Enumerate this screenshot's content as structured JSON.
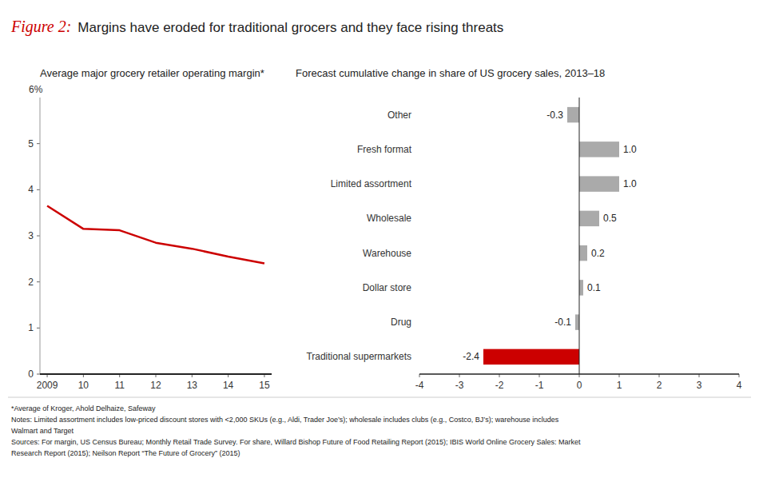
{
  "title": "Figure 2:",
  "subtitle": "Margins have eroded for traditional grocers and they face rising threats",
  "notes": [
    "*Average of Kroger, Ahold Delhaize, Safeway",
    "Notes: Limited assortment includes low-priced discount stores with <2,000 SKUs (e.g., Aldi, Trader Joe’s); wholesale includes clubs (e.g., Costco, BJ’s); warehouse includes",
    "Walmart and Target",
    "Sources: For margin, US Census Bureau; Monthly Retail Trade Survey. For share, Willard Bishop Future of Food Retailing Report (2015); IBIS World Online Grocery Sales: Market",
    "Research Report (2015); Neilson Report “The Future of Grocery” (2015)"
  ],
  "chart_data": [
    {
      "type": "line",
      "title": "Average major grocery retailer operating margin*",
      "ylabel": "6%",
      "x": [
        2009,
        2010,
        2011,
        2012,
        2013,
        2014,
        2015
      ],
      "values": [
        3.65,
        3.15,
        3.12,
        2.85,
        2.72,
        2.55,
        2.4
      ],
      "color": "#cc0000",
      "xlim": [
        2008.8,
        2015.2
      ],
      "xticks": [
        2009,
        {
          "value": 2010,
          "label": "10"
        },
        {
          "value": 2011,
          "label": "11"
        },
        {
          "value": 2012,
          "label": "12"
        },
        {
          "value": 2013,
          "label": "13"
        },
        {
          "value": 2014,
          "label": "14"
        },
        {
          "value": 2015,
          "label": "15"
        }
      ],
      "ylim": [
        0,
        6
      ],
      "yticks": [
        0,
        1,
        2,
        3,
        4,
        5
      ],
      "grid": false
    },
    {
      "type": "bar",
      "orientation": "horizontal",
      "title": "Forecast cumulative change in share of US grocery sales, 2013–18",
      "categories": [
        "Traditional supermarkets",
        "Drug",
        "Dollar store",
        "Warehouse",
        "Wholesale",
        "Limited assortment",
        "Fresh format",
        "Other"
      ],
      "values": [
        -2.4,
        -0.1,
        0.1,
        0.2,
        0.5,
        1.0,
        1.0,
        -0.3
      ],
      "value_labels": [
        "-2.4",
        "-0.1",
        "0.1",
        "0.2",
        "0.5",
        "1.0",
        "1.0",
        "-0.3"
      ],
      "colors": [
        "#cc0000",
        "#aaaaaa",
        "#aaaaaa",
        "#aaaaaa",
        "#aaaaaa",
        "#aaaaaa",
        "#aaaaaa",
        "#aaaaaa"
      ],
      "xlim": [
        -4,
        4
      ],
      "xticks": [
        -4,
        -3,
        -2,
        -1,
        0,
        1,
        2,
        3,
        4
      ],
      "data_labels": true,
      "grid": false
    }
  ]
}
